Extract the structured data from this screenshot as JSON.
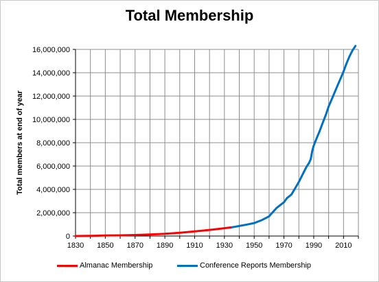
{
  "chart_data": {
    "type": "line",
    "title": "Total Membership",
    "xlabel": "",
    "ylabel": "Total members at end of year",
    "xlim": [
      1830,
      2020
    ],
    "ylim": [
      0,
      16000000
    ],
    "x_ticks": [
      1830,
      1850,
      1870,
      1890,
      1910,
      1930,
      1950,
      1970,
      1990,
      2010
    ],
    "y_ticks": [
      0,
      2000000,
      4000000,
      6000000,
      8000000,
      10000000,
      12000000,
      14000000,
      16000000
    ],
    "y_tick_labels": [
      "0",
      "2,000,000",
      "4,000,000",
      "6,000,000",
      "8,000,000",
      "10,000,000",
      "12,000,000",
      "14,000,000",
      "16,000,000"
    ],
    "grid": true,
    "legend_position": "bottom",
    "series": [
      {
        "name": "Almanac Membership",
        "color": "#ff0000",
        "x": [
          1830,
          1840,
          1845,
          1850,
          1860,
          1870,
          1880,
          1890,
          1900,
          1910,
          1920,
          1930,
          1935
        ],
        "y": [
          280,
          16000,
          30000,
          52000,
          61000,
          90000,
          134000,
          188000,
          284000,
          398000,
          526000,
          670000,
          746000
        ]
      },
      {
        "name": "Conference Reports Membership",
        "color": "#0070c0",
        "x": [
          1935,
          1940,
          1945,
          1950,
          1955,
          1960,
          1965,
          1970,
          1972,
          1975,
          1978,
          1980,
          1983,
          1985,
          1987,
          1988,
          1989,
          1990,
          1992,
          1994,
          1996,
          1998,
          2000,
          2002,
          2004,
          2006,
          2008,
          2010,
          2012,
          2014,
          2016,
          2018
        ],
        "y": [
          750000,
          860000,
          980000,
          1110000,
          1360000,
          1690000,
          2400000,
          2900000,
          3250000,
          3550000,
          4200000,
          4640000,
          5400000,
          5900000,
          6300000,
          6600000,
          7300000,
          7750000,
          8400000,
          9000000,
          9700000,
          10350000,
          11100000,
          11700000,
          12300000,
          12900000,
          13500000,
          14100000,
          14800000,
          15400000,
          15900000,
          16300000
        ]
      }
    ]
  }
}
